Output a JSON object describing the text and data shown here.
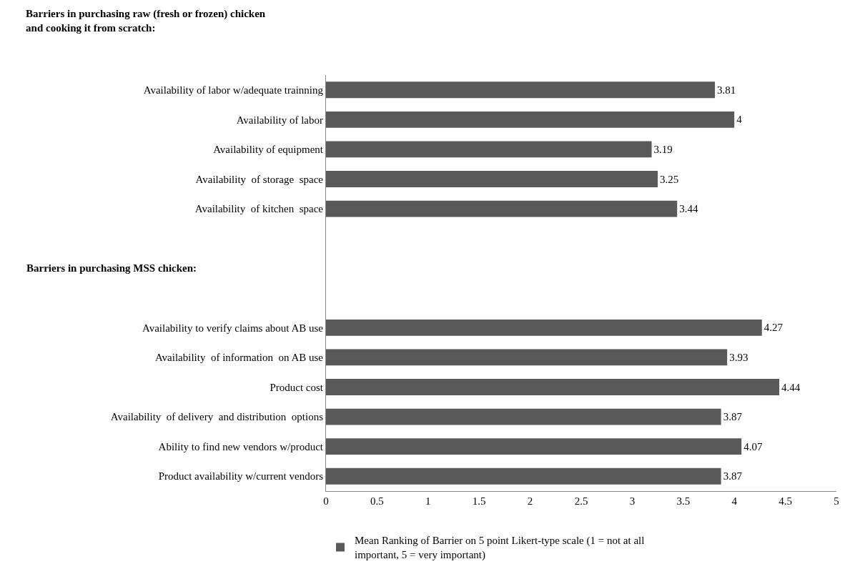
{
  "chart_data": {
    "type": "bar",
    "orientation": "horizontal",
    "title": "Barriers in purchasing raw (fresh or frozen) chicken and cooking it from scratch:",
    "categories": [
      "Availability of labor w/adequate trainning",
      "Availability of labor",
      "Availability of equipment",
      "Availability  of storage  space",
      "Availability  of kitchen  space",
      null,
      null,
      null,
      "Availability to verify claims about AB use",
      "Availability  of information  on AB use",
      "Product cost",
      "Availability  of delivery  and distribution  options",
      "Ability to find new vendors w/product",
      "Product availability w/current vendors"
    ],
    "series": [
      {
        "name": "Mean Ranking of Barrier on 5 point Likert-type scale (1 = not at all important, 5 = very important)",
        "color": "#595959",
        "values": [
          3.81,
          4,
          3.19,
          3.25,
          3.44,
          null,
          null,
          null,
          4.27,
          3.93,
          4.44,
          3.87,
          4.07,
          3.87
        ]
      }
    ],
    "xlim": [
      0,
      5
    ],
    "xticks": [
      0,
      0.5,
      1,
      1.5,
      2,
      2.5,
      3,
      3.5,
      4,
      4.5,
      5
    ],
    "annotations": [
      "Barriers in purchasing MSS chicken:"
    ],
    "data_labels": true,
    "grid": false,
    "legend": "bottom"
  }
}
